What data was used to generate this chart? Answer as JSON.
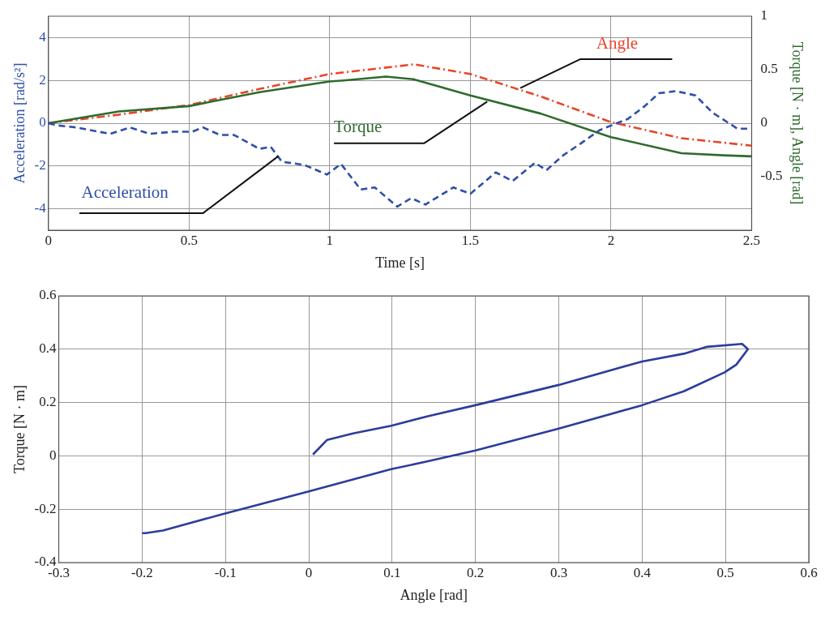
{
  "chart_data": [
    {
      "type": "line",
      "xlabel": "Time [s]",
      "ylabel": "Acceleration [rad/s²]",
      "y2label": "Torque [N · m], Angle [rad]",
      "xlim": [
        0,
        2.5
      ],
      "xticks": [
        0,
        0.5,
        1,
        1.5,
        2,
        2.5
      ],
      "ylim": [
        -5,
        5
      ],
      "yticks": [
        -4,
        -2,
        0,
        2,
        4
      ],
      "y2lim": [
        -1,
        1
      ],
      "y2ticks": [
        -0.5,
        0,
        0.5,
        1
      ],
      "grid": true,
      "legend": false,
      "marker": "none",
      "series": [
        {
          "name": "Acceleration",
          "color": "#2e4fa8",
          "line_style": "dashed",
          "x": [
            0,
            0.03,
            0.1,
            0.16,
            0.22,
            0.29,
            0.36,
            0.44,
            0.51,
            0.55,
            0.61,
            0.66,
            0.75,
            0.79,
            0.83,
            0.91,
            0.99,
            1.04,
            1.11,
            1.16,
            1.24,
            1.29,
            1.34,
            1.44,
            1.5,
            1.59,
            1.65,
            1.73,
            1.77,
            1.83,
            1.89,
            1.96,
            2.06,
            2.12,
            2.17,
            2.23,
            2.3,
            2.36,
            2.45,
            2.5
          ],
          "values": [
            0,
            -0.1,
            -0.2,
            -0.35,
            -0.5,
            -0.2,
            -0.5,
            -0.4,
            -0.4,
            -0.2,
            -0.55,
            -0.55,
            -1.2,
            -1.1,
            -1.8,
            -1.95,
            -2.4,
            -1.9,
            -3.1,
            -3.0,
            -3.9,
            -3.5,
            -3.8,
            -3.0,
            -3.3,
            -2.3,
            -2.7,
            -1.85,
            -2.2,
            -1.5,
            -0.97,
            -0.32,
            0.2,
            0.8,
            1.4,
            1.5,
            1.3,
            0.5,
            -0.26,
            -0.25
          ]
        },
        {
          "name": "Torque",
          "color": "#2e6b2e",
          "line_style": "solid",
          "axis": "y2",
          "x": [
            0,
            0.25,
            0.5,
            0.75,
            1,
            1.05,
            1.2,
            1.3,
            1.5,
            1.75,
            2,
            2.25,
            2.4,
            2.5
          ],
          "values": [
            0,
            0.11,
            0.16,
            0.29,
            0.39,
            0.4,
            0.435,
            0.41,
            0.26,
            0.09,
            -0.13,
            -0.28,
            -0.3,
            -0.31
          ]
        },
        {
          "name": "Angle",
          "color": "#e8452a",
          "line_style": "dashdot",
          "axis": "y2",
          "x": [
            0,
            0.25,
            0.5,
            0.75,
            1,
            1.1,
            1.3,
            1.5,
            1.75,
            2,
            2.25,
            2.5
          ],
          "values": [
            0,
            0.08,
            0.17,
            0.32,
            0.46,
            0.49,
            0.55,
            0.46,
            0.25,
            0.01,
            -0.14,
            -0.21
          ]
        }
      ]
    },
    {
      "type": "line",
      "xlabel": "Angle [rad]",
      "ylabel": "Torque [N · m]",
      "xlim": [
        -0.3,
        0.6
      ],
      "xticks": [
        -0.3,
        -0.2,
        -0.1,
        0,
        0.1,
        0.2,
        0.3,
        0.4,
        0.5,
        0.6
      ],
      "ylim": [
        -0.4,
        0.6
      ],
      "yticks": [
        -0.4,
        -0.2,
        0,
        0.2,
        0.4,
        0.6
      ],
      "grid": true,
      "legend": false,
      "marker": "none",
      "series": [
        {
          "color": "#2b3d9c",
          "line_style": "solid",
          "x": [
            0.005,
            0.022,
            0.053,
            0.099,
            0.142,
            0.2,
            0.3,
            0.4,
            0.45,
            0.478,
            0.52,
            0.527,
            0.513,
            0.499,
            0.45,
            0.4,
            0.3,
            0.2,
            0.142,
            0.099,
            0,
            -0.105,
            -0.175,
            -0.196,
            -0.2
          ],
          "values": [
            0.005,
            0.06,
            0.084,
            0.113,
            0.148,
            0.19,
            0.266,
            0.354,
            0.383,
            0.409,
            0.42,
            0.4,
            0.342,
            0.313,
            0.242,
            0.19,
            0.102,
            0.02,
            -0.021,
            -0.05,
            -0.133,
            -0.22,
            -0.28,
            -0.29,
            -0.29
          ]
        }
      ]
    }
  ]
}
